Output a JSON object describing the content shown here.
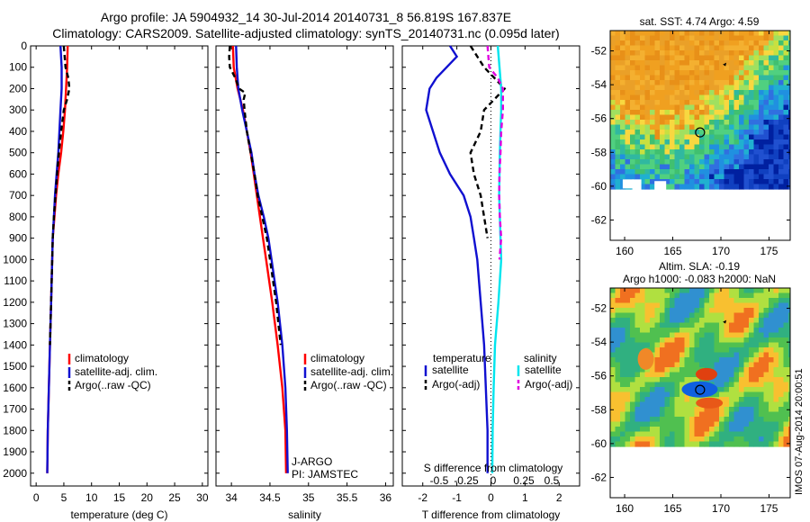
{
  "header": {
    "line1": "Argo profile: JA 5904932_14 30-Jul-2014 20140731_8 56.819S 167.837E",
    "line2": "Climatology: CARS2009. Satellite-adjusted climatology: synTS_20140731.nc (0.095d later)"
  },
  "colors": {
    "climatology": "#ff0000",
    "satellite": "#1010d0",
    "argo": "#000000",
    "sat_salinity": "#00e5ee",
    "argo_salinity": "#e000e0"
  },
  "side_text": "IMOS 07-Aug-2014 20:00:51",
  "chart_data": [
    {
      "type": "line",
      "name": "temperature",
      "xlabel": "temperature (deg C)",
      "ylabel": "",
      "xlim": [
        -1,
        31
      ],
      "ylim": [
        0,
        2060
      ],
      "xticks": [
        0,
        5,
        10,
        15,
        20,
        25,
        30
      ],
      "yticks": [
        0,
        100,
        200,
        300,
        400,
        500,
        600,
        700,
        800,
        900,
        1000,
        1100,
        1200,
        1300,
        1400,
        1500,
        1600,
        1700,
        1800,
        1900,
        2000
      ],
      "legend": [
        "climatology",
        "satellite-adj. clim.",
        "Argo(..raw -QC)"
      ],
      "series": [
        {
          "name": "climatology",
          "color": "#ff0000",
          "dash": "",
          "depth": [
            0,
            100,
            200,
            300,
            400,
            500,
            600,
            700,
            800,
            900,
            1000,
            1200,
            1400,
            1600,
            1800,
            2000
          ],
          "values": [
            5.7,
            5.6,
            5.4,
            5.2,
            4.9,
            4.5,
            4.0,
            3.6,
            3.3,
            3.0,
            2.9,
            2.7,
            2.5,
            2.3,
            2.1,
            2.0
          ]
        },
        {
          "name": "satellite-adj. clim.",
          "color": "#1010d0",
          "dash": "",
          "depth": [
            0,
            100,
            200,
            300,
            400,
            500,
            600,
            700,
            800,
            900,
            1000,
            1200,
            1400,
            1600,
            1800,
            2000
          ],
          "values": [
            4.4,
            4.6,
            4.6,
            4.4,
            4.2,
            4.0,
            3.7,
            3.4,
            3.2,
            3.0,
            2.9,
            2.7,
            2.5,
            2.3,
            2.1,
            2.0
          ]
        },
        {
          "name": "Argo(..raw -QC)",
          "color": "#000000",
          "dash": "6,4",
          "depth": [
            0,
            100,
            150,
            200,
            250,
            300,
            400,
            500,
            600,
            700,
            800,
            900,
            1000,
            1200,
            1400
          ],
          "values": [
            5.0,
            5.3,
            5.8,
            6.0,
            5.6,
            5.0,
            4.5,
            4.1,
            3.8,
            3.5,
            3.2,
            3.0,
            2.9,
            2.7,
            2.5
          ]
        }
      ]
    },
    {
      "type": "line",
      "name": "salinity",
      "xlabel": "salinity",
      "ylabel": "",
      "xlim": [
        33.8,
        36.1
      ],
      "ylim": [
        0,
        2060
      ],
      "xticks": [
        34,
        34.5,
        35,
        35.5,
        36
      ],
      "legend": [
        "climatology",
        "satellite-adj. clim.",
        "Argo(..raw -QC)"
      ],
      "annotations": [
        "J-ARGO",
        "PI: JAMSTEC"
      ],
      "series": [
        {
          "name": "climatology",
          "color": "#ff0000",
          "dash": "",
          "depth": [
            0,
            100,
            200,
            300,
            400,
            500,
            600,
            700,
            800,
            900,
            1000,
            1200,
            1400,
            1600,
            1800,
            2000
          ],
          "values": [
            34.02,
            34.03,
            34.08,
            34.15,
            34.2,
            34.25,
            34.29,
            34.33,
            34.37,
            34.41,
            34.45,
            34.53,
            34.6,
            34.66,
            34.7,
            34.71
          ]
        },
        {
          "name": "satellite-adj. clim.",
          "color": "#1010d0",
          "dash": "",
          "depth": [
            0,
            100,
            200,
            300,
            400,
            500,
            600,
            700,
            800,
            900,
            1000,
            1200,
            1400,
            1600,
            1800,
            2000
          ],
          "values": [
            34.06,
            34.07,
            34.09,
            34.14,
            34.2,
            34.26,
            34.3,
            34.35,
            34.42,
            34.48,
            34.52,
            34.6,
            34.66,
            34.7,
            34.72,
            34.73
          ]
        },
        {
          "name": "Argo(..raw -QC)",
          "color": "#000000",
          "dash": "6,4",
          "depth": [
            0,
            50,
            100,
            150,
            200,
            220,
            250,
            300,
            400,
            500,
            600,
            700,
            800,
            900,
            1000,
            1200,
            1400
          ],
          "values": [
            33.98,
            33.97,
            33.98,
            34.05,
            34.1,
            34.18,
            34.16,
            34.17,
            34.2,
            34.25,
            34.3,
            34.34,
            34.4,
            34.46,
            34.5,
            34.58,
            34.64
          ]
        }
      ]
    },
    {
      "type": "line",
      "name": "differences",
      "xlabel": "T difference from climatology",
      "xlabel2": "S difference from climatology",
      "xlim": [
        -2.6,
        2.6
      ],
      "ylim": [
        0,
        2060
      ],
      "xticks": [
        -2,
        -1,
        0,
        1,
        2
      ],
      "xticks2": [
        "-0.5",
        "-0.25",
        "0",
        "0.25",
        "0.5"
      ],
      "legend_title_t": "temperature",
      "legend_title_s": "salinity",
      "legend": [
        "satellite",
        "Argo(-adj)",
        "satellite",
        "Argo(-adj)"
      ],
      "series": [
        {
          "name": "satellite",
          "group": "temperature",
          "color": "#1010d0",
          "dash": "",
          "depth": [
            0,
            50,
            100,
            150,
            200,
            300,
            400,
            500,
            600,
            700,
            800,
            900,
            1000,
            1200,
            1400,
            1600,
            1800,
            2000
          ],
          "values": [
            -1.2,
            -1.0,
            -1.3,
            -1.6,
            -1.8,
            -1.9,
            -1.7,
            -1.5,
            -1.2,
            -0.8,
            -0.6,
            -0.5,
            -0.4,
            -0.3,
            -0.2,
            -0.15,
            -0.1,
            -0.1
          ]
        },
        {
          "name": "Argo(-adj)",
          "group": "temperature",
          "color": "#000000",
          "dash": "6,4",
          "depth": [
            0,
            100,
            200,
            300,
            400,
            500,
            600,
            700,
            800,
            900
          ],
          "values": [
            -0.6,
            -0.2,
            0.4,
            -0.2,
            -0.3,
            -0.6,
            -0.5,
            -0.3,
            -0.2,
            -0.1
          ]
        },
        {
          "name": "satellite",
          "group": "salinity",
          "color": "#00e5ee",
          "dash": "",
          "depth": [
            0,
            100,
            200,
            300,
            400,
            500,
            600,
            700,
            800,
            900,
            1000,
            1200,
            1400,
            1600,
            1800,
            2000
          ],
          "values": [
            0.2,
            0.25,
            0.3,
            0.3,
            0.28,
            0.26,
            0.25,
            0.24,
            0.26,
            0.28,
            0.3,
            0.22,
            0.12,
            0.08,
            0.05,
            0.04
          ]
        },
        {
          "name": "Argo(-adj)",
          "group": "salinity",
          "color": "#e000e0",
          "dash": "6,4",
          "depth": [
            0,
            100,
            150,
            200,
            300,
            400,
            500,
            600,
            700,
            800,
            900,
            1000
          ],
          "values": [
            -0.1,
            -0.05,
            0.2,
            0.35,
            0.35,
            0.3,
            0.28,
            0.25,
            0.24,
            0.26,
            0.3,
            0.25
          ]
        }
      ]
    },
    {
      "type": "heatmap",
      "name": "sst_map",
      "title": "sat. SST: 4.74 Argo: 4.59",
      "xticks": [
        160,
        165,
        170,
        175
      ],
      "yticks": [
        -52,
        -54,
        -56,
        -58,
        -60,
        -62
      ],
      "xlim": [
        158.5,
        177.2
      ],
      "ylim": [
        -63.2,
        -50.8
      ],
      "marker": [
        167.837,
        -56.819
      ]
    },
    {
      "type": "heatmap",
      "name": "sla_map",
      "title": "Altim. SLA: -0.19",
      "subtitle": "Argo h1000: -0.083 h2000: NaN",
      "xticks": [
        160,
        165,
        170,
        175
      ],
      "yticks": [
        -52,
        -54,
        -56,
        -58,
        -60,
        -62
      ],
      "xlim": [
        158.5,
        177.2
      ],
      "ylim": [
        -63.2,
        -50.8
      ],
      "marker": [
        167.837,
        -56.819
      ]
    }
  ]
}
